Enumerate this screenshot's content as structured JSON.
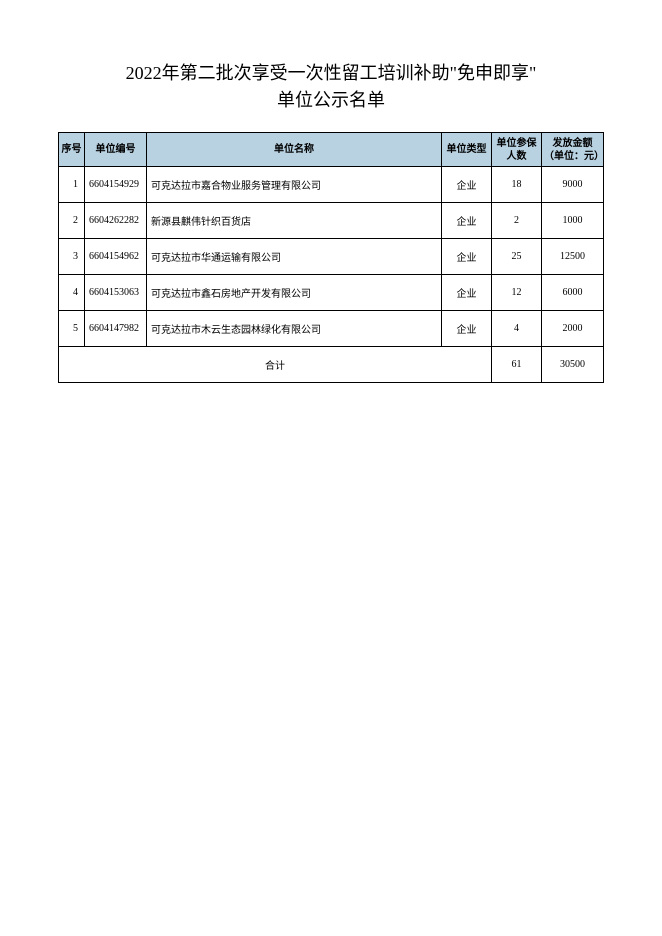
{
  "title_line1": "2022年第二批次享受一次性留工培训补助\"免申即享\"",
  "title_line2": "单位公示名单",
  "table": {
    "columns": [
      "序号",
      "单位编号",
      "单位名称",
      "单位类型",
      "单位参保人数",
      "发放金额（单位：元）"
    ],
    "rows": [
      {
        "seq": "1",
        "code": "6604154929",
        "name": "可克达拉市嘉合物业服务管理有限公司",
        "type": "企业",
        "count": "18",
        "amount": "9000"
      },
      {
        "seq": "2",
        "code": "6604262282",
        "name": "新源县麒伟针织百货店",
        "type": "企业",
        "count": "2",
        "amount": "1000"
      },
      {
        "seq": "3",
        "code": "6604154962",
        "name": "可克达拉市华通运输有限公司",
        "type": "企业",
        "count": "25",
        "amount": "12500"
      },
      {
        "seq": "4",
        "code": "6604153063",
        "name": "可克达拉市鑫石房地产开发有限公司",
        "type": "企业",
        "count": "12",
        "amount": "6000"
      },
      {
        "seq": "5",
        "code": "6604147982",
        "name": "可克达拉市木云生态园林绿化有限公司",
        "type": "企业",
        "count": "4",
        "amount": "2000"
      }
    ],
    "total_label": "合计",
    "total_count": "61",
    "total_amount": "30500"
  },
  "colors": {
    "header_bg": "#b9d2e2",
    "border": "#000000",
    "text": "#000000",
    "background": "#ffffff"
  }
}
